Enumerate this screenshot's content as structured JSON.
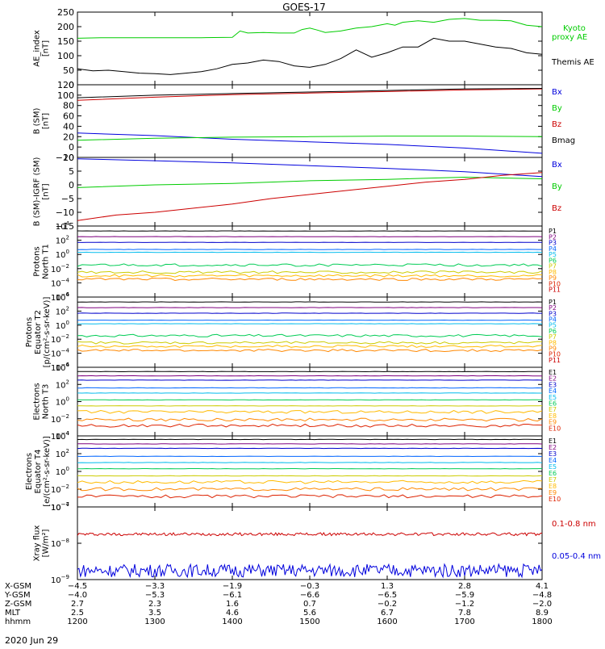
{
  "figure": {
    "title": "GOES-17",
    "date": "2020 Jun 29"
  },
  "colors": {
    "black": "#000000",
    "blue": "#0000dd",
    "green": "#00cc00",
    "red": "#cc0000",
    "P": [
      "#000000",
      "#7f007f",
      "#0000cc",
      "#0066ff",
      "#00bbee",
      "#00cc55",
      "#cccc00",
      "#ffbb00",
      "#ff8800",
      "#dd2200",
      "#cc0000"
    ],
    "E": [
      "#000000",
      "#7f007f",
      "#0000cc",
      "#0066ff",
      "#00bbee",
      "#00cc55",
      "#cccc00",
      "#ffbb00",
      "#ff8800",
      "#dd2200",
      "#cc0000"
    ]
  },
  "chart_data": [
    {
      "id": "ae",
      "type": "line",
      "ylabel": [
        "AE_index",
        "[nT]"
      ],
      "ylim": [
        0,
        250
      ],
      "yticks": [
        0,
        50,
        100,
        150,
        200,
        250
      ],
      "ytick_labels": [
        "0",
        "50",
        "100",
        "150",
        "200",
        "250"
      ],
      "xlim": [
        1200,
        1800
      ],
      "series": [
        {
          "name": "Kyoto proxy AE",
          "label_lines": [
            "Kyoto",
            "proxy AE"
          ],
          "color": "green",
          "points": [
            [
              1200,
              160
            ],
            [
              1230,
              162
            ],
            [
              1260,
              162
            ],
            [
              1300,
              162
            ],
            [
              1330,
              162
            ],
            [
              1360,
              162
            ],
            [
              1400,
              163
            ],
            [
              1410,
              185
            ],
            [
              1420,
              178
            ],
            [
              1440,
              180
            ],
            [
              1460,
              178
            ],
            [
              1480,
              178
            ],
            [
              1490,
              190
            ],
            [
              1500,
              195
            ],
            [
              1510,
              188
            ],
            [
              1520,
              180
            ],
            [
              1540,
              185
            ],
            [
              1560,
              195
            ],
            [
              1580,
              200
            ],
            [
              1600,
              210
            ],
            [
              1610,
              205
            ],
            [
              1620,
              215
            ],
            [
              1640,
              220
            ],
            [
              1660,
              215
            ],
            [
              1680,
              225
            ],
            [
              1700,
              228
            ],
            [
              1720,
              222
            ],
            [
              1740,
              222
            ],
            [
              1760,
              220
            ],
            [
              1780,
              205
            ],
            [
              1800,
              200
            ]
          ]
        },
        {
          "name": "Themis AE",
          "label_lines": [
            "Themis AE"
          ],
          "color": "black",
          "points": [
            [
              1200,
              55
            ],
            [
              1220,
              48
            ],
            [
              1240,
              50
            ],
            [
              1260,
              45
            ],
            [
              1280,
              40
            ],
            [
              1300,
              38
            ],
            [
              1320,
              35
            ],
            [
              1340,
              40
            ],
            [
              1360,
              45
            ],
            [
              1380,
              55
            ],
            [
              1400,
              70
            ],
            [
              1420,
              75
            ],
            [
              1440,
              85
            ],
            [
              1460,
              80
            ],
            [
              1480,
              65
            ],
            [
              1500,
              60
            ],
            [
              1520,
              70
            ],
            [
              1540,
              90
            ],
            [
              1560,
              120
            ],
            [
              1580,
              95
            ],
            [
              1600,
              110
            ],
            [
              1620,
              130
            ],
            [
              1640,
              130
            ],
            [
              1660,
              160
            ],
            [
              1680,
              150
            ],
            [
              1700,
              150
            ],
            [
              1720,
              140
            ],
            [
              1740,
              130
            ],
            [
              1760,
              125
            ],
            [
              1780,
              110
            ],
            [
              1800,
              105
            ]
          ]
        }
      ]
    },
    {
      "id": "b",
      "type": "line",
      "ylabel": [
        "B (SM)",
        "[nT]"
      ],
      "ylim": [
        -20,
        120
      ],
      "yticks": [
        -20,
        0,
        20,
        40,
        60,
        80,
        100,
        120
      ],
      "ytick_labels": [
        "−20",
        "0",
        "20",
        "40",
        "60",
        "80",
        "100",
        "120"
      ],
      "xlim": [
        1200,
        1800
      ],
      "series": [
        {
          "name": "Bx",
          "color": "blue",
          "points": [
            [
              1200,
              27
            ],
            [
              1300,
              22
            ],
            [
              1400,
              15
            ],
            [
              1500,
              10
            ],
            [
              1600,
              5
            ],
            [
              1700,
              -2
            ],
            [
              1800,
              -12
            ]
          ]
        },
        {
          "name": "By",
          "color": "green",
          "points": [
            [
              1200,
              13
            ],
            [
              1300,
              17
            ],
            [
              1400,
              19
            ],
            [
              1500,
              20
            ],
            [
              1600,
              21
            ],
            [
              1700,
              21
            ],
            [
              1800,
              20
            ]
          ]
        },
        {
          "name": "Bz",
          "color": "red",
          "points": [
            [
              1200,
              90
            ],
            [
              1300,
              96
            ],
            [
              1400,
              101
            ],
            [
              1500,
              104
            ],
            [
              1600,
              107
            ],
            [
              1700,
              110
            ],
            [
              1800,
              112
            ]
          ]
        },
        {
          "name": "Bmag",
          "color": "black",
          "points": [
            [
              1200,
              95
            ],
            [
              1300,
              100
            ],
            [
              1400,
              103
            ],
            [
              1500,
              106
            ],
            [
              1600,
              109
            ],
            [
              1700,
              112
            ],
            [
              1800,
              113
            ]
          ]
        }
      ]
    },
    {
      "id": "db",
      "type": "line",
      "ylabel": [
        "B (SM)-IGRF (SM)",
        "[nT]"
      ],
      "ylim": [
        -15,
        10
      ],
      "yticks": [
        -15,
        -10,
        -5,
        0,
        5,
        10
      ],
      "ytick_labels": [
        "−15",
        "−10",
        "−5",
        "0",
        "5",
        "10"
      ],
      "xlim": [
        1200,
        1800
      ],
      "series": [
        {
          "name": "Bx",
          "color": "blue",
          "points": [
            [
              1200,
              9.5
            ],
            [
              1300,
              8.8
            ],
            [
              1400,
              8
            ],
            [
              1500,
              7
            ],
            [
              1600,
              6
            ],
            [
              1700,
              4.8
            ],
            [
              1800,
              3
            ]
          ]
        },
        {
          "name": "By",
          "color": "green",
          "points": [
            [
              1200,
              -1
            ],
            [
              1300,
              0
            ],
            [
              1400,
              0.5
            ],
            [
              1500,
              1.5
            ],
            [
              1600,
              2
            ],
            [
              1700,
              2.8
            ],
            [
              1800,
              2.2
            ]
          ]
        },
        {
          "name": "Bz",
          "color": "red",
          "points": [
            [
              1200,
              -13
            ],
            [
              1250,
              -11
            ],
            [
              1300,
              -10
            ],
            [
              1350,
              -8.5
            ],
            [
              1400,
              -7
            ],
            [
              1450,
              -5
            ],
            [
              1500,
              -3.5
            ],
            [
              1550,
              -2
            ],
            [
              1600,
              -0.5
            ],
            [
              1650,
              1
            ],
            [
              1700,
              2
            ],
            [
              1750,
              3.5
            ],
            [
              1800,
              4.5
            ]
          ]
        }
      ]
    },
    {
      "id": "pn",
      "type": "line",
      "log": true,
      "ylabel": [
        "Protons",
        "North T1"
      ],
      "ylim": [
        -6,
        4
      ],
      "yticks": [
        4,
        2,
        0,
        -2,
        -4,
        -6
      ],
      "xlim": [
        1200,
        1800
      ],
      "channels": [
        "P1",
        "P2",
        "P3",
        "P4",
        "P5",
        "P6",
        "P7",
        "P8",
        "P9",
        "P10",
        "P11"
      ],
      "levels": [
        3.3,
        2.5,
        1.7,
        0.7,
        0.3,
        -1.5,
        -2.5,
        -3.0,
        -3.5,
        null,
        null
      ]
    },
    {
      "id": "pe",
      "type": "line",
      "log": true,
      "ylabel": [
        "Protons",
        "Equator T2",
        "[p/(cm²-s-sr-keV)]"
      ],
      "ylim": [
        -6,
        4
      ],
      "yticks": [
        4,
        2,
        0,
        -2,
        -4,
        -6
      ],
      "xlim": [
        1200,
        1800
      ],
      "channels": [
        "P1",
        "P2",
        "P3",
        "P4",
        "P5",
        "P6",
        "P7",
        "P8",
        "P9",
        "P10",
        "P11"
      ],
      "levels": [
        3.3,
        2.5,
        1.7,
        0.7,
        0.2,
        -1.5,
        -2.5,
        -3.0,
        -3.6,
        null,
        null
      ]
    },
    {
      "id": "en",
      "type": "line",
      "log": true,
      "ylabel": [
        "Electrons",
        "North T3"
      ],
      "ylim": [
        -4,
        4
      ],
      "yticks": [
        4,
        2,
        0,
        -2,
        -4
      ],
      "xlim": [
        1200,
        1800
      ],
      "channels": [
        "E1",
        "E2",
        "E3",
        "E4",
        "E5",
        "E6",
        "E7",
        "E8",
        "E9",
        "E10"
      ],
      "levels": [
        3.5,
        3.0,
        2.5,
        1.6,
        1.0,
        0.2,
        -0.5,
        -1.2,
        -2.1,
        -2.8
      ]
    },
    {
      "id": "ee",
      "type": "line",
      "log": true,
      "ylabel": [
        "Electrons",
        "Equator T4",
        "[e/(cm²-s-sr-keV)]"
      ],
      "ylim": [
        -4,
        4
      ],
      "yticks": [
        4,
        2,
        0,
        -2,
        -4
      ],
      "xlim": [
        1200,
        1800
      ],
      "channels": [
        "E1",
        "E2",
        "E3",
        "E4",
        "E5",
        "E6",
        "E7",
        "E8",
        "E9",
        "E10"
      ],
      "levels": [
        3.6,
        3.1,
        2.6,
        1.7,
        1.0,
        0.3,
        -0.5,
        -1.2,
        -2.0,
        -2.8
      ]
    },
    {
      "id": "xray",
      "type": "line",
      "log": true,
      "ylabel": [
        "Xray flux",
        "[W/m²]"
      ],
      "ylim": [
        -9,
        -7
      ],
      "yticks": [
        -7,
        -8,
        -9
      ],
      "xlim": [
        1200,
        1800
      ],
      "series": [
        {
          "name": "0.1-0.8 nm",
          "color": "red",
          "level": -7.75,
          "jitter": 0.04
        },
        {
          "name": "0.05-0.4 nm",
          "color": "blue",
          "level": -8.75,
          "jitter": 0.18
        }
      ]
    }
  ],
  "xaxis": {
    "ticks": [
      1200,
      1300,
      1400,
      1500,
      1600,
      1700,
      1800
    ],
    "rows": [
      {
        "label": "X-GSM",
        "values": [
          "-4.5",
          "-3.3",
          "-1.9",
          "-0.3",
          "1.3",
          "2.8",
          "4.1"
        ]
      },
      {
        "label": "Y-GSM",
        "values": [
          "-4.0",
          "-5.3",
          "-6.1",
          "-6.6",
          "-6.5",
          "-5.9",
          "-4.8"
        ]
      },
      {
        "label": "Z-GSM",
        "values": [
          "2.7",
          "2.3",
          "1.6",
          "0.7",
          "-0.2",
          "-1.2",
          "-2.0"
        ]
      },
      {
        "label": "MLT",
        "values": [
          "2.5",
          "3.5",
          "4.6",
          "5.6",
          "6.7",
          "7.8",
          "8.9"
        ]
      },
      {
        "label": "hhmm",
        "values": [
          "1200",
          "1300",
          "1400",
          "1500",
          "1600",
          "1700",
          "1800"
        ]
      }
    ]
  }
}
